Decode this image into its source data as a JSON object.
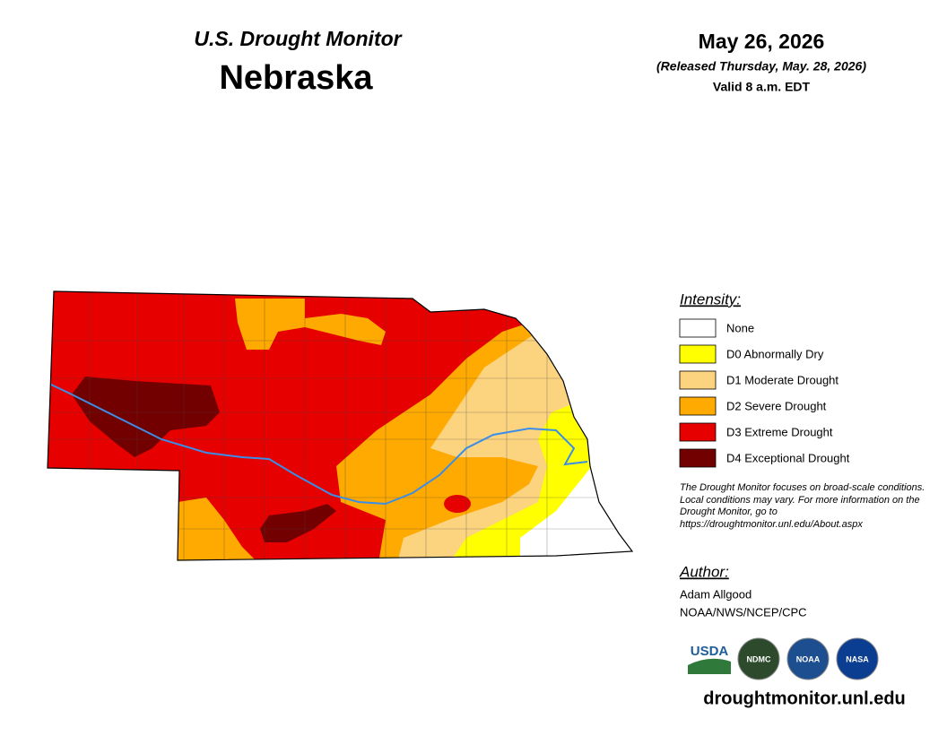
{
  "header": {
    "title": "U.S. Drought Monitor",
    "state": "Nebraska",
    "date": "May 26, 2026",
    "released": "(Released Thursday, May. 28, 2026)",
    "valid": "Valid 8 a.m. EDT"
  },
  "legend": {
    "title": "Intensity:",
    "items": [
      {
        "label": "None",
        "color": "#ffffff"
      },
      {
        "label": "D0 Abnormally Dry",
        "color": "#ffff00"
      },
      {
        "label": "D1 Moderate Drought",
        "color": "#fcd37f"
      },
      {
        "label": "D2 Severe Drought",
        "color": "#ffaa00"
      },
      {
        "label": "D3 Extreme Drought",
        "color": "#e60000"
      },
      {
        "label": "D4 Exceptional Drought",
        "color": "#730000"
      }
    ]
  },
  "note": "The Drought Monitor focuses on broad-scale conditions. Local conditions may vary. For more information on the Drought Monitor, go to https://droughtmonitor.unl.edu/About.aspx",
  "author": {
    "title": "Author:",
    "name": "Adam Allgood",
    "org": "NOAA/NWS/NCEP/CPC"
  },
  "logos": [
    "USDA",
    "NDMC",
    "NOAA",
    "NASA"
  ],
  "url": "droughtmonitor.unl.edu"
}
